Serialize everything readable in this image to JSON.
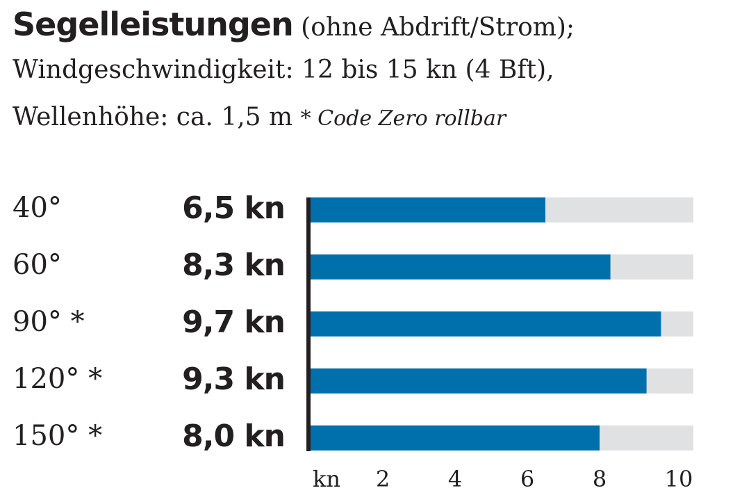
{
  "header": {
    "title": "Segelleistungen",
    "line1_rest": "(ohne Abdrift/Strom);",
    "line2": "Windgeschwindigkeit: 12 bis 15 kn (4 Bft),",
    "line3": "Wellenhöhe: ca. 1,5 m",
    "note": "* Code Zero rollbar"
  },
  "chart_data": {
    "type": "bar",
    "orientation": "horizontal",
    "categories": [
      "40°",
      "60°",
      "90° *",
      "120° *",
      "150° *"
    ],
    "value_labels": [
      "6,5 kn",
      "8,3 kn",
      "9,7 kn",
      "9,3 kn",
      "8,0 kn"
    ],
    "values": [
      6.5,
      8.3,
      9.7,
      9.3,
      8.0
    ],
    "xlabel": "kn",
    "xticks": [
      2,
      4,
      6,
      8,
      10
    ],
    "xlim": [
      0,
      10.5
    ],
    "grid": false,
    "bar_color": "#0070ad",
    "track_color": "#e0e1e3"
  }
}
